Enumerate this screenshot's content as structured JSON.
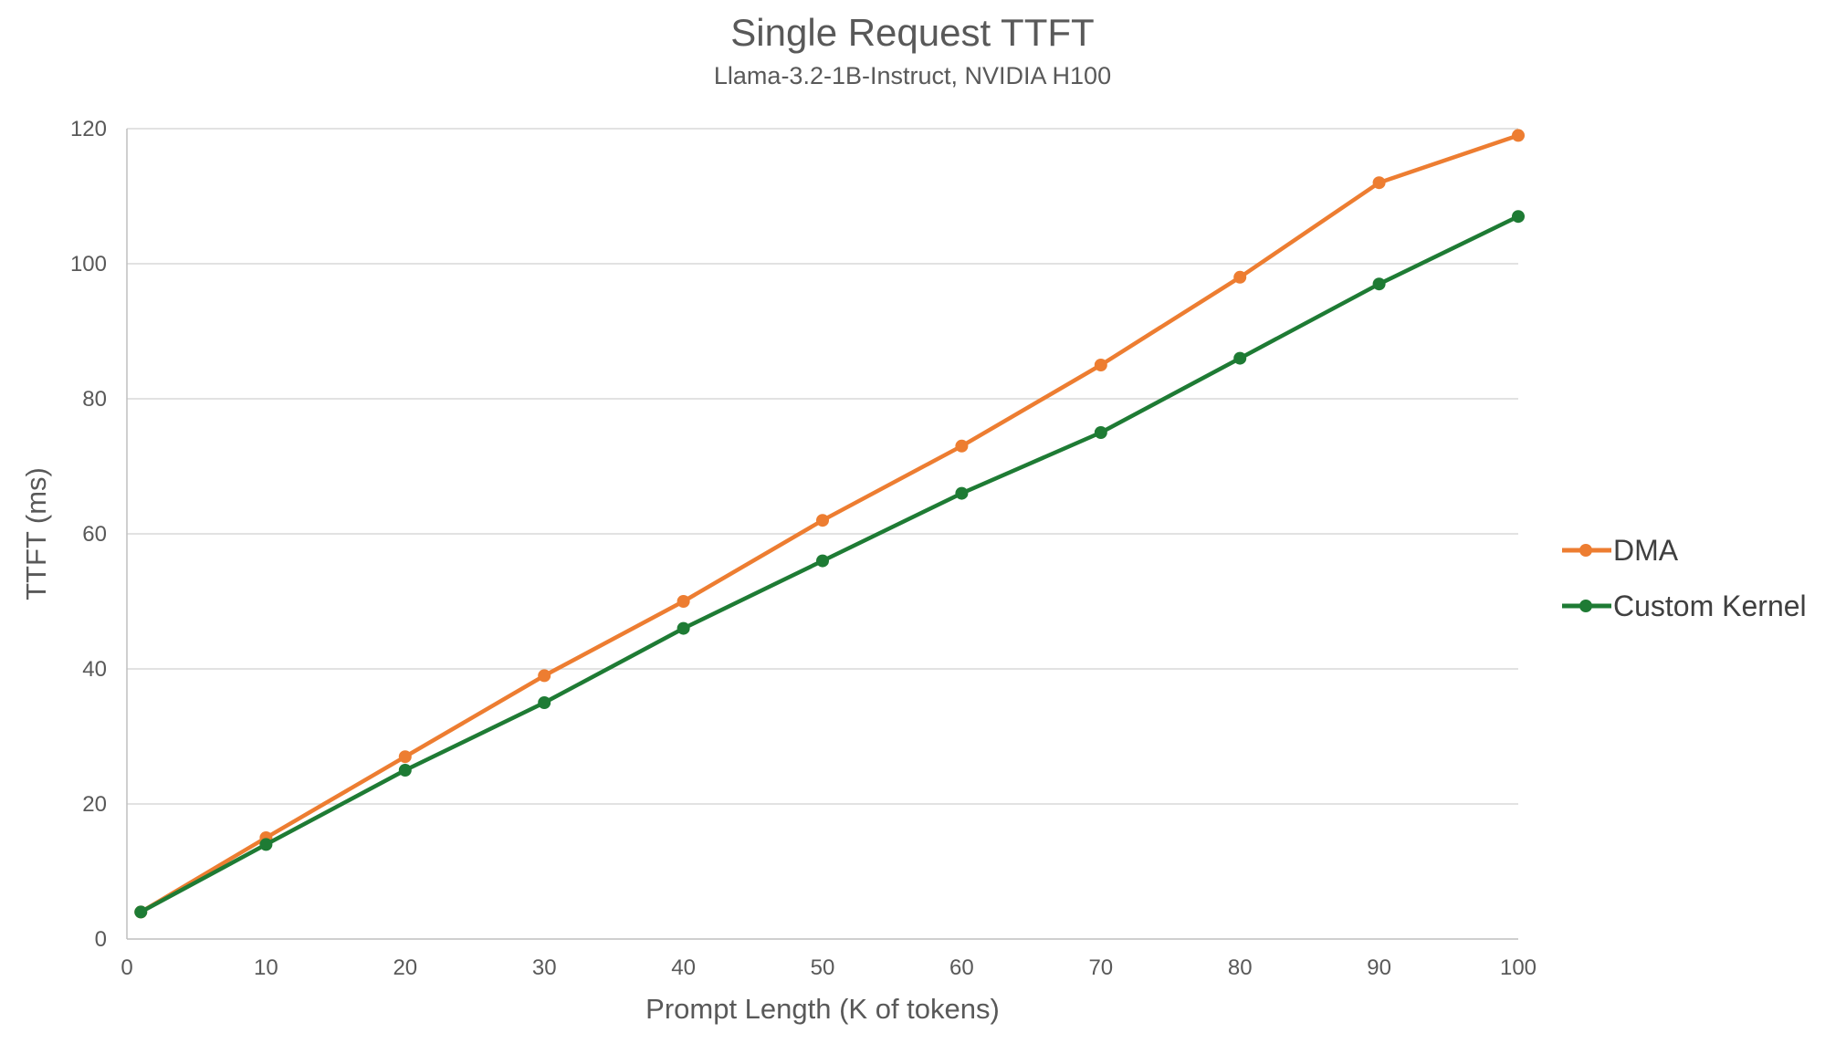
{
  "chart_data": {
    "type": "line",
    "title": "Single Request TTFT",
    "subtitle": "Llama-3.2-1B-Instruct, NVIDIA H100",
    "xlabel": "Prompt Length (K of tokens)",
    "ylabel": "TTFT (ms)",
    "x": [
      1,
      10,
      20,
      30,
      40,
      50,
      60,
      70,
      80,
      90,
      100
    ],
    "series": [
      {
        "name": "DMA",
        "color": "#ED7D31",
        "values": [
          4,
          15,
          27,
          39,
          50,
          62,
          73,
          85,
          98,
          112,
          119
        ]
      },
      {
        "name": "Custom Kernel",
        "color": "#1E7B34",
        "values": [
          4,
          14,
          25,
          35,
          46,
          56,
          66,
          75,
          86,
          97,
          107
        ]
      }
    ],
    "xlim": [
      0,
      100
    ],
    "ylim": [
      0,
      120
    ],
    "x_ticks": [
      0,
      10,
      20,
      30,
      40,
      50,
      60,
      70,
      80,
      90,
      100
    ],
    "y_ticks": [
      0,
      20,
      40,
      60,
      80,
      100,
      120
    ],
    "grid": "horizontal-only",
    "legend_position": "right"
  },
  "colors": {
    "dma": "#ED7D31",
    "custom_kernel": "#1E7B34",
    "gridline": "#D9D9D9",
    "axis_line": "#BFBFBF",
    "title_text": "#595959",
    "tick_text": "#595959",
    "legend_text": "#404040"
  },
  "legend": {
    "items": [
      "DMA",
      "Custom Kernel"
    ]
  }
}
